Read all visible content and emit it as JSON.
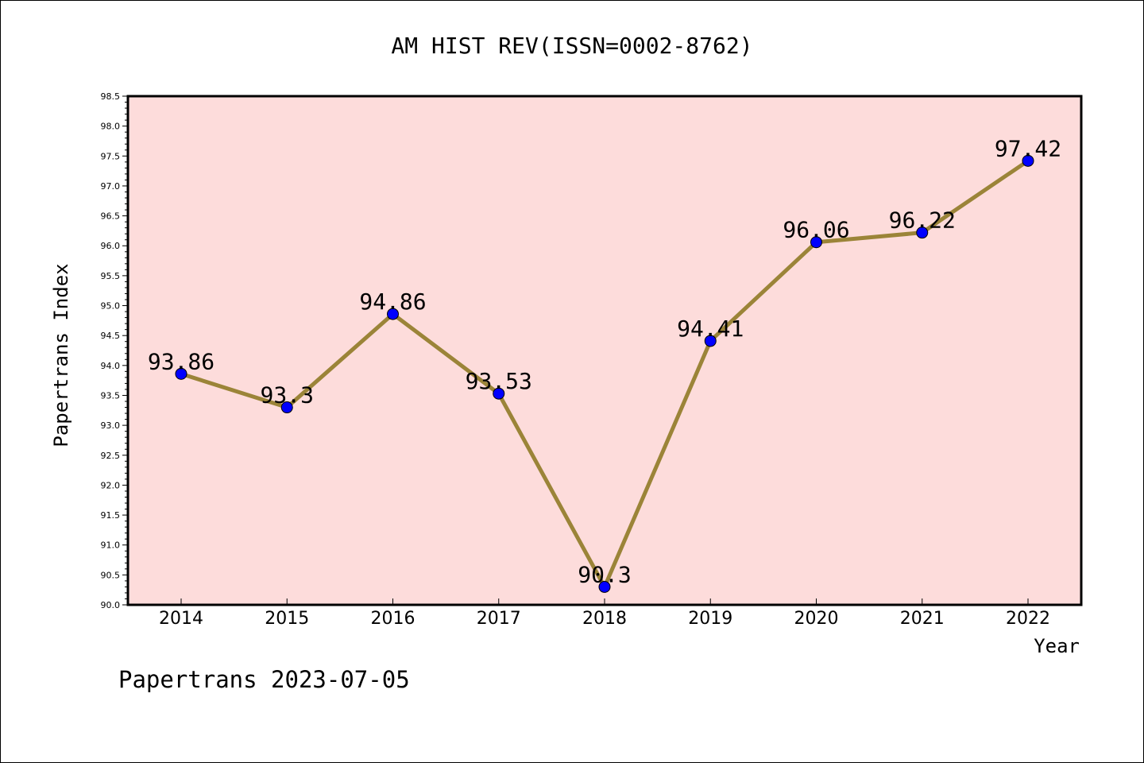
{
  "chart_data": {
    "type": "line",
    "title": "AM HIST REV(ISSN=0002-8762)",
    "xlabel": "Year",
    "ylabel": "Papertrans Index",
    "footer": "Papertrans 2023-07-05",
    "x": [
      "2014",
      "2015",
      "2016",
      "2017",
      "2018",
      "2019",
      "2020",
      "2021",
      "2022"
    ],
    "series": [
      {
        "values": [
          93.86,
          93.3,
          94.86,
          93.53,
          90.3,
          94.41,
          96.06,
          96.22,
          97.42
        ],
        "labels": [
          "93.86",
          "93.3",
          "94.86",
          "93.53",
          "90.3",
          "94.41",
          "96.06",
          "96.22",
          "97.42"
        ]
      }
    ],
    "ylim": [
      90.0,
      98.5
    ],
    "yticks": [
      "90.0",
      "90.5",
      "91.0",
      "91.5",
      "92.0",
      "92.5",
      "93.0",
      "93.5",
      "94.0",
      "94.5",
      "95.0",
      "95.5",
      "96.0",
      "96.5",
      "97.0",
      "97.5",
      "98.0",
      "98.5"
    ],
    "grid": false,
    "colors": {
      "plot_background": "#fddcdb",
      "line": "#9b8438",
      "marker": "#0000ff"
    }
  }
}
